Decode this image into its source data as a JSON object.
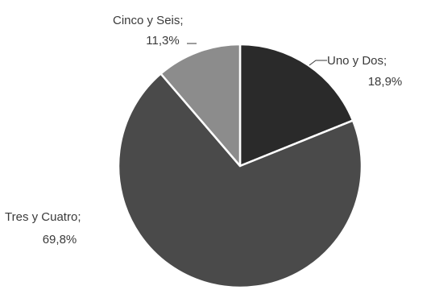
{
  "chart_data": {
    "type": "pie",
    "title": "",
    "start_angle_deg": 0,
    "direction": "clockwise",
    "slices": [
      {
        "label": "Uno y Dos",
        "value": 18.9,
        "display": "18,9%",
        "color": "#2a2a2a"
      },
      {
        "label": "Tres y Cuatro",
        "value": 69.8,
        "display": "69,8%",
        "color": "#4a4a4a"
      },
      {
        "label": "Cinco y Seis",
        "value": 11.3,
        "display": "11,3%",
        "color": "#8c8c8c"
      }
    ],
    "legend": "none",
    "data_label_separator": ";"
  }
}
